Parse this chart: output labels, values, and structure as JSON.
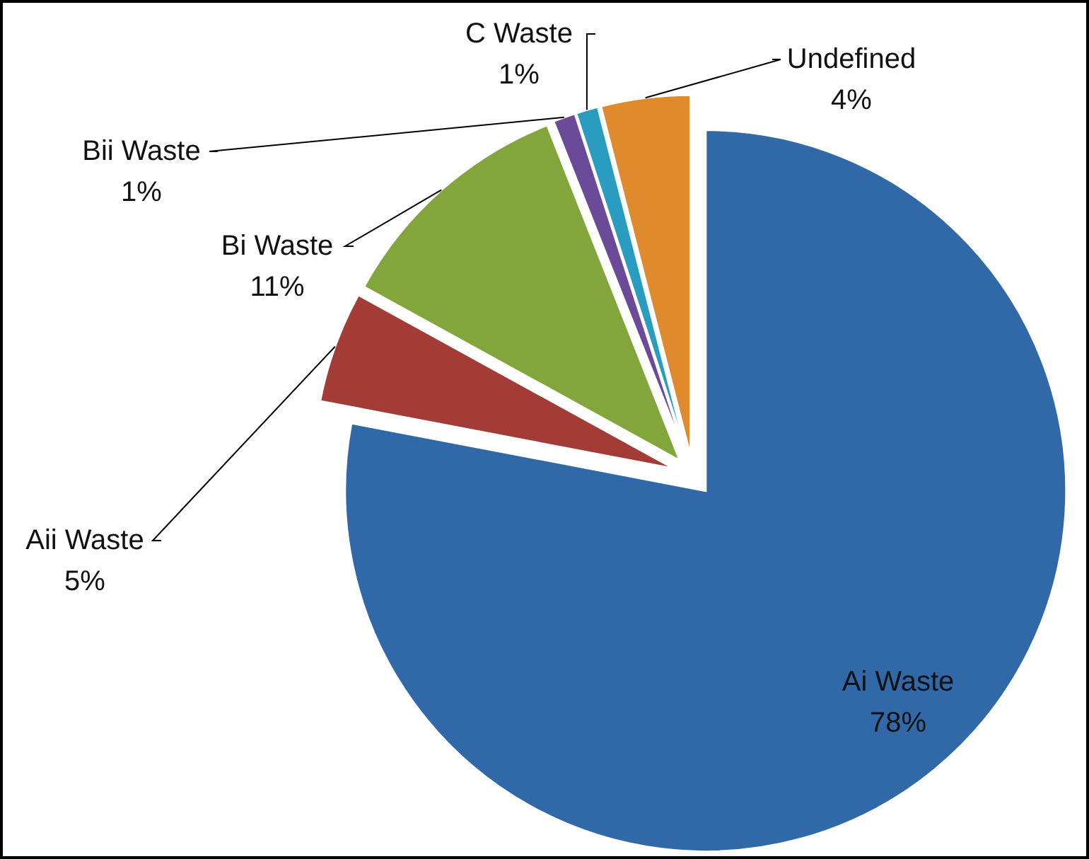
{
  "chart_data": {
    "type": "pie",
    "categories": [
      "Ai Waste",
      "Aii Waste",
      "Bi Waste",
      "Bii Waste",
      "C Waste",
      "Undefined"
    ],
    "values": [
      78,
      5,
      11,
      1,
      1,
      4
    ],
    "value_labels": [
      "78%",
      "5%",
      "11%",
      "1%",
      "1%",
      "4%"
    ],
    "colors": [
      "#3169a8",
      "#a33b36",
      "#82a63c",
      "#6b4a97",
      "#2a9cc0",
      "#e08a2e"
    ]
  }
}
